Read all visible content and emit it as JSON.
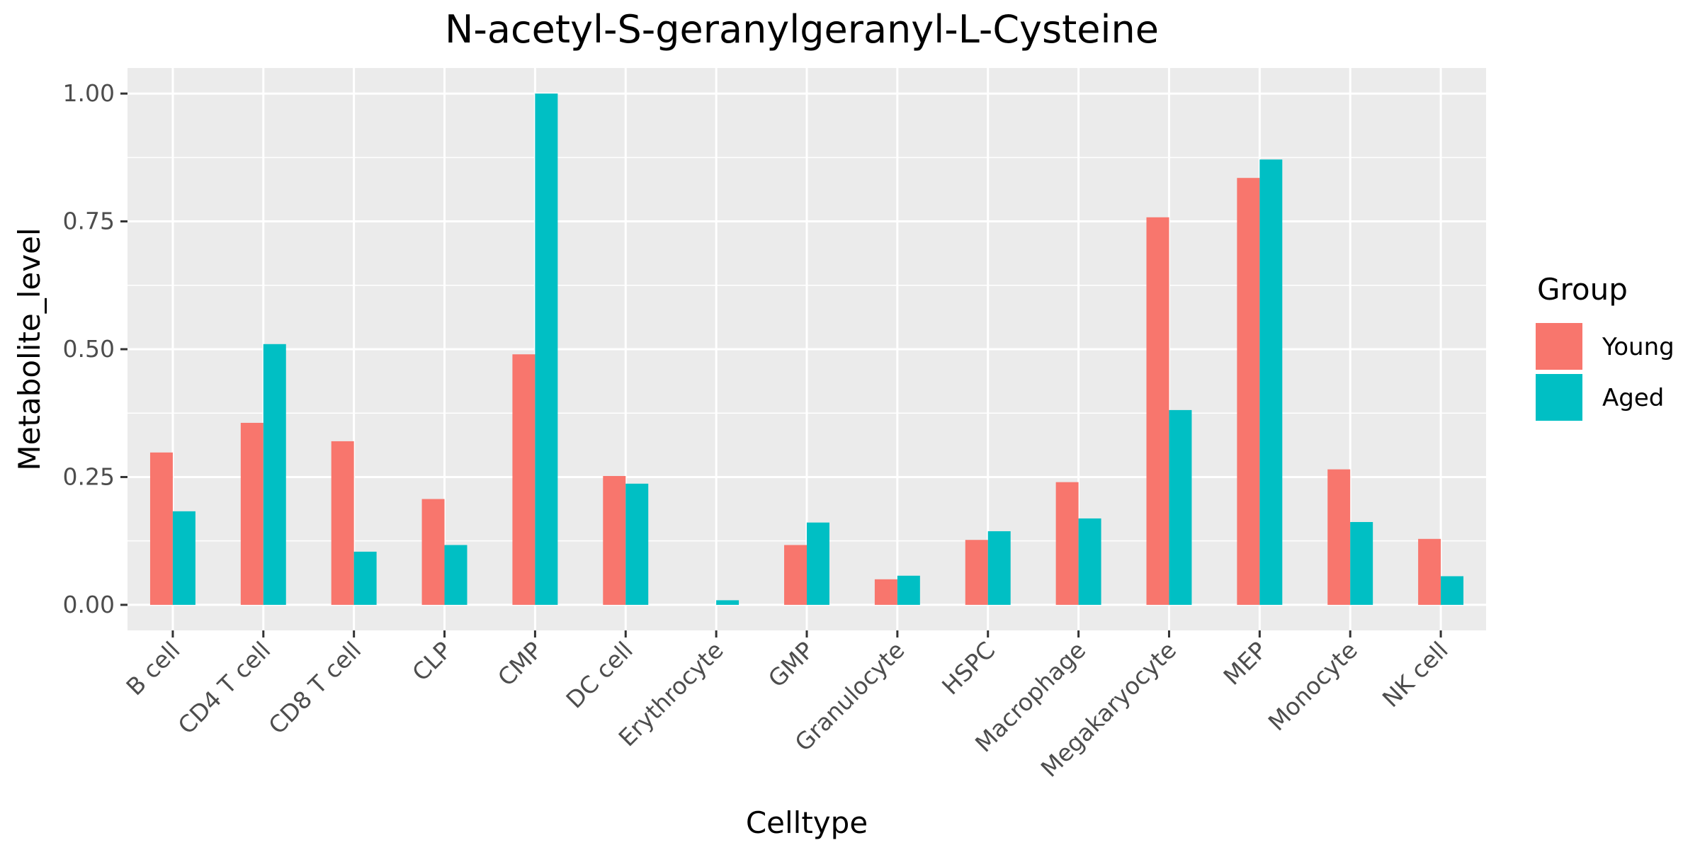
{
  "chart_data": {
    "type": "bar",
    "title": "N-acetyl-S-geranylgeranyl-L-Cysteine",
    "xlabel": "Celltype",
    "ylabel": "Metabolite_level",
    "ylim": [
      -0.05,
      1.05
    ],
    "yticks": [
      0,
      0.25,
      0.5,
      0.75,
      1.0
    ],
    "ytick_labels": [
      "0.00",
      "0.25",
      "0.50",
      "0.75",
      "1.00"
    ],
    "grid": true,
    "legend_position": "right",
    "legend_title": "Group",
    "categories": [
      "B cell",
      "CD4 T cell",
      "CD8 T cell",
      "CLP",
      "CMP",
      "DC cell",
      "Erythrocyte",
      "GMP",
      "Granulocyte",
      "HSPC",
      "Macrophage",
      "Megakaryocyte",
      "MEP",
      "Monocyte",
      "NK cell"
    ],
    "series": [
      {
        "name": "Young",
        "color": "#F8766D",
        "values": [
          0.298,
          0.356,
          0.32,
          0.207,
          0.49,
          0.252,
          0.0,
          0.117,
          0.05,
          0.127,
          0.24,
          0.758,
          0.835,
          0.265,
          0.129
        ]
      },
      {
        "name": "Aged",
        "color": "#00BFC4",
        "values": [
          0.183,
          0.51,
          0.104,
          0.117,
          1.0,
          0.237,
          0.009,
          0.161,
          0.057,
          0.144,
          0.169,
          0.381,
          0.871,
          0.162,
          0.056
        ]
      }
    ]
  }
}
